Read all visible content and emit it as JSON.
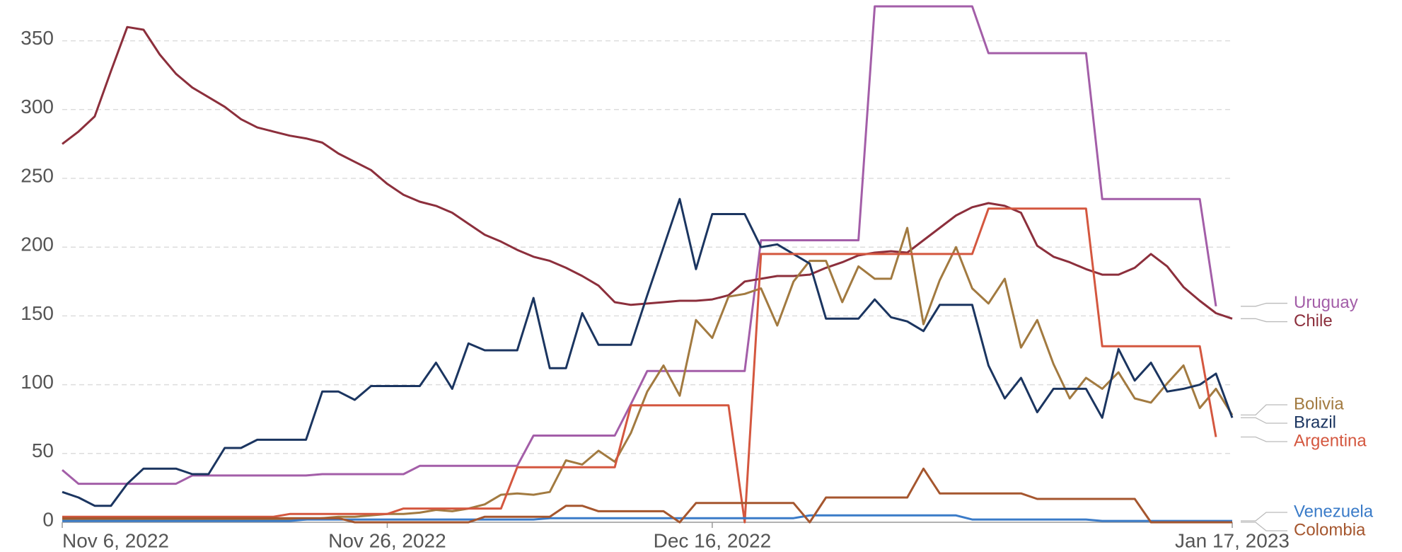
{
  "chart_data": {
    "type": "line",
    "x": [
      "2022-11-06",
      "2022-11-07",
      "2022-11-08",
      "2022-11-09",
      "2022-11-10",
      "2022-11-11",
      "2022-11-12",
      "2022-11-13",
      "2022-11-14",
      "2022-11-15",
      "2022-11-16",
      "2022-11-17",
      "2022-11-18",
      "2022-11-19",
      "2022-11-20",
      "2022-11-21",
      "2022-11-22",
      "2022-11-23",
      "2022-11-24",
      "2022-11-25",
      "2022-11-26",
      "2022-11-27",
      "2022-11-28",
      "2022-11-29",
      "2022-11-30",
      "2022-12-01",
      "2022-12-02",
      "2022-12-03",
      "2022-12-04",
      "2022-12-05",
      "2022-12-06",
      "2022-12-07",
      "2022-12-08",
      "2022-12-09",
      "2022-12-10",
      "2022-12-11",
      "2022-12-12",
      "2022-12-13",
      "2022-12-14",
      "2022-12-15",
      "2022-12-16",
      "2022-12-17",
      "2022-12-18",
      "2022-12-19",
      "2022-12-20",
      "2022-12-21",
      "2022-12-22",
      "2022-12-23",
      "2022-12-24",
      "2022-12-25",
      "2022-12-26",
      "2022-12-27",
      "2022-12-28",
      "2022-12-29",
      "2022-12-30",
      "2022-12-31",
      "2023-01-01",
      "2023-01-02",
      "2023-01-03",
      "2023-01-04",
      "2023-01-05",
      "2023-01-06",
      "2023-01-07",
      "2023-01-08",
      "2023-01-09",
      "2023-01-10",
      "2023-01-11",
      "2023-01-12",
      "2023-01-13",
      "2023-01-14",
      "2023-01-15",
      "2023-01-16",
      "2023-01-17"
    ],
    "series": [
      {
        "name": "Uruguay",
        "color": "#a35ea8",
        "values": [
          38,
          28,
          28,
          28,
          28,
          28,
          28,
          28,
          34,
          34,
          34,
          34,
          34,
          34,
          34,
          34,
          35,
          35,
          35,
          35,
          35,
          35,
          41,
          41,
          41,
          41,
          41,
          41,
          41,
          63,
          63,
          63,
          63,
          63,
          63,
          86,
          110,
          110,
          110,
          110,
          110,
          110,
          110,
          205,
          205,
          205,
          205,
          205,
          205,
          205,
          375,
          375,
          375,
          375,
          375,
          375,
          375,
          341,
          341,
          341,
          341,
          341,
          341,
          341,
          235,
          235,
          235,
          235,
          235,
          235,
          235,
          157,
          null
        ]
      },
      {
        "name": "Chile",
        "color": "#8c2f3c",
        "values": [
          275,
          284,
          295,
          328,
          360,
          358,
          340,
          326,
          316,
          309,
          302,
          293,
          287,
          284,
          281,
          279,
          276,
          268,
          262,
          256,
          246,
          238,
          233,
          230,
          225,
          217,
          209,
          204,
          198,
          193,
          190,
          185,
          179,
          172,
          160,
          158,
          159,
          160,
          161,
          161,
          162,
          165,
          175,
          177,
          179,
          179,
          180,
          185,
          189,
          194,
          196,
          197,
          196,
          205,
          214,
          223,
          229,
          232,
          230,
          225,
          201,
          193,
          189,
          184,
          180,
          180,
          185,
          195,
          186,
          171,
          161,
          152,
          148
        ]
      },
      {
        "name": "Bolivia",
        "color": "#a27a40",
        "values": [
          2,
          2,
          2,
          2,
          2,
          2,
          2,
          2,
          2,
          2,
          2,
          2,
          2,
          2,
          2,
          2,
          3,
          4,
          4,
          5,
          6,
          6,
          7,
          9,
          8,
          10,
          13,
          20,
          21,
          20,
          22,
          45,
          42,
          52,
          44,
          65,
          95,
          114,
          92,
          147,
          134,
          164,
          166,
          170,
          143,
          175,
          190,
          190,
          160,
          186,
          177,
          177,
          214,
          144,
          176,
          200,
          170,
          159,
          177,
          127,
          147,
          115,
          90,
          105,
          97,
          109,
          90,
          87,
          101,
          114,
          83,
          97,
          78
        ]
      },
      {
        "name": "Brazil",
        "color": "#1b3560",
        "values": [
          22,
          18,
          12,
          12,
          28,
          39,
          39,
          39,
          35,
          35,
          54,
          54,
          60,
          60,
          60,
          60,
          95,
          95,
          89,
          99,
          99,
          99,
          99,
          116,
          97,
          130,
          125,
          125,
          125,
          163,
          112,
          112,
          152,
          129,
          129,
          129,
          165,
          200,
          235,
          184,
          224,
          224,
          224,
          200,
          202,
          195,
          188,
          148,
          148,
          148,
          162,
          149,
          146,
          139,
          158,
          158,
          158,
          114,
          90,
          105,
          80,
          97,
          97,
          97,
          76,
          126,
          103,
          116,
          95,
          97,
          100,
          108,
          76
        ]
      },
      {
        "name": "Argentina",
        "color": "#d4573f",
        "values": [
          4,
          4,
          4,
          4,
          4,
          4,
          4,
          4,
          4,
          4,
          4,
          4,
          4,
          4,
          6,
          6,
          6,
          6,
          6,
          6,
          6,
          10,
          10,
          10,
          10,
          10,
          10,
          10,
          40,
          40,
          40,
          40,
          40,
          40,
          40,
          85,
          85,
          85,
          85,
          85,
          85,
          85,
          0,
          195,
          195,
          195,
          195,
          195,
          195,
          195,
          195,
          195,
          195,
          195,
          195,
          195,
          195,
          228,
          228,
          228,
          228,
          228,
          228,
          228,
          128,
          128,
          128,
          128,
          128,
          128,
          128,
          62,
          null
        ]
      },
      {
        "name": "Venezuela",
        "color": "#3a7bc8",
        "values": [
          1,
          1,
          1,
          1,
          1,
          1,
          1,
          1,
          1,
          1,
          1,
          1,
          1,
          1,
          1,
          2,
          2,
          2,
          2,
          2,
          2,
          2,
          2,
          2,
          2,
          2,
          2,
          2,
          2,
          2,
          3,
          3,
          3,
          3,
          3,
          3,
          3,
          3,
          3,
          3,
          3,
          3,
          3,
          3,
          3,
          3,
          5,
          5,
          5,
          5,
          5,
          5,
          5,
          5,
          5,
          5,
          2,
          2,
          2,
          2,
          2,
          2,
          2,
          2,
          1,
          1,
          1,
          1,
          1,
          1,
          1,
          1,
          1
        ]
      },
      {
        "name": "Colombia",
        "color": "#a5562e",
        "values": [
          3,
          3,
          3,
          3,
          3,
          3,
          3,
          3,
          3,
          3,
          3,
          3,
          3,
          3,
          3,
          3,
          3,
          3,
          0,
          0,
          0,
          0,
          0,
          0,
          0,
          0,
          4,
          4,
          4,
          4,
          4,
          12,
          12,
          8,
          8,
          8,
          8,
          8,
          0,
          14,
          14,
          14,
          14,
          14,
          14,
          14,
          0,
          18,
          18,
          18,
          18,
          18,
          18,
          39,
          21,
          21,
          21,
          21,
          21,
          21,
          17,
          17,
          17,
          17,
          17,
          17,
          17,
          0,
          0,
          0,
          0,
          0,
          0
        ]
      }
    ],
    "xlim": [
      "2022-11-06",
      "2023-01-17"
    ],
    "xticks": [
      {
        "value": "2022-11-06",
        "label": "Nov 6, 2022"
      },
      {
        "value": "2022-11-26",
        "label": "Nov 26, 2022"
      },
      {
        "value": "2022-12-16",
        "label": "Dec 16, 2022"
      },
      {
        "value": "2023-01-17",
        "label": "Jan 17, 2023"
      }
    ],
    "ylim": [
      0,
      375
    ],
    "yticks": [
      0,
      50,
      100,
      150,
      200,
      250,
      300,
      350
    ],
    "grid": true
  }
}
